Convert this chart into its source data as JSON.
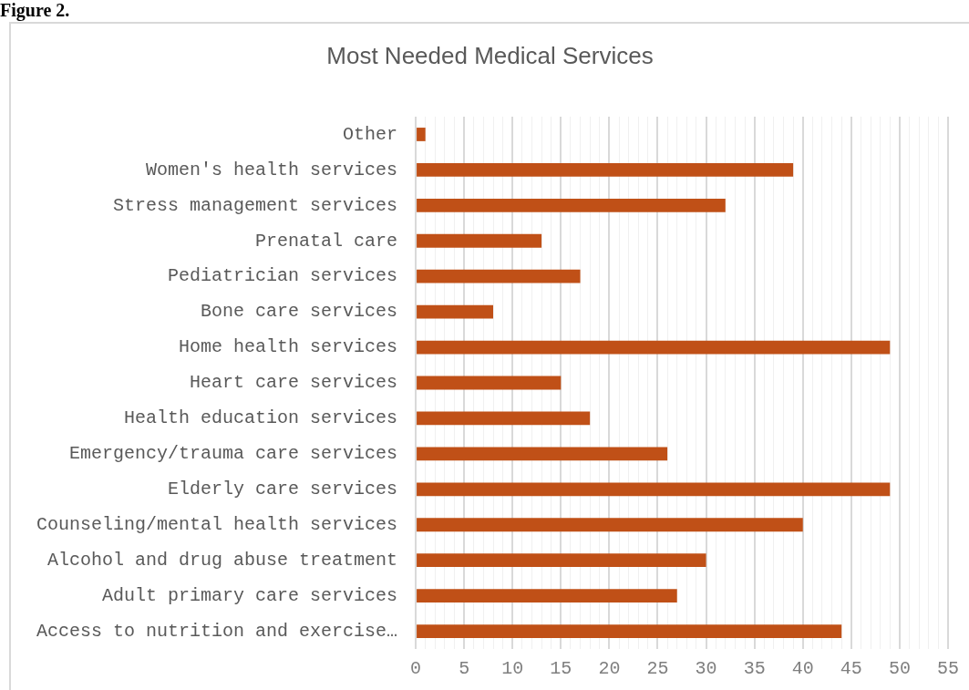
{
  "chart_data": {
    "type": "bar",
    "orientation": "horizontal",
    "title": "Most Needed Medical Services",
    "annotations": [
      "Figure 2."
    ],
    "categories": [
      "Other",
      "Women's health services",
      "Stress management services",
      "Prenatal care",
      "Pediatrician services",
      "Bone care services",
      "Home health services",
      "Heart care services",
      "Health education services",
      "Emergency/trauma care services",
      "Elderly care services",
      "Counseling/mental health services",
      "Alcohol and drug abuse treatment",
      "Adult primary care services",
      "Access to nutrition and exercise…"
    ],
    "values": [
      1,
      39,
      32,
      13,
      17,
      8,
      49,
      15,
      18,
      26,
      49,
      40,
      30,
      27,
      44
    ],
    "color": "#c05017",
    "xlim": [
      0,
      55
    ],
    "xticks": [
      0,
      {
        "value": 1,
        "label": null
      },
      {
        "value": 2,
        "label": null
      },
      {
        "value": 3,
        "label": null
      },
      {
        "value": 4,
        "label": null
      },
      5,
      {
        "value": 6,
        "label": null
      },
      {
        "value": 7,
        "label": null
      },
      {
        "value": 8,
        "label": null
      },
      {
        "value": 9,
        "label": null
      },
      10,
      {
        "value": 11,
        "label": null
      },
      {
        "value": 12,
        "label": null
      },
      {
        "value": 13,
        "label": null
      },
      {
        "value": 14,
        "label": null
      },
      15,
      {
        "value": 16,
        "label": null
      },
      {
        "value": 17,
        "label": null
      },
      {
        "value": 18,
        "label": null
      },
      {
        "value": 19,
        "label": null
      },
      20,
      {
        "value": 21,
        "label": null
      },
      {
        "value": 22,
        "label": null
      },
      {
        "value": 23,
        "label": null
      },
      {
        "value": 24,
        "label": null
      },
      25,
      {
        "value": 26,
        "label": null
      },
      {
        "value": 27,
        "label": null
      },
      {
        "value": 28,
        "label": null
      },
      {
        "value": 29,
        "label": null
      },
      30,
      {
        "value": 31,
        "label": null
      },
      {
        "value": 32,
        "label": null
      },
      {
        "value": 33,
        "label": null
      },
      {
        "value": 34,
        "label": null
      },
      35,
      {
        "value": 36,
        "label": null
      },
      {
        "value": 37,
        "label": null
      },
      {
        "value": 38,
        "label": null
      },
      {
        "value": 39,
        "label": null
      },
      40,
      {
        "value": 41,
        "label": null
      },
      {
        "value": 42,
        "label": null
      },
      {
        "value": 43,
        "label": null
      },
      {
        "value": 44,
        "label": null
      },
      45,
      {
        "value": 46,
        "label": null
      },
      {
        "value": 47,
        "label": null
      },
      {
        "value": 48,
        "label": null
      },
      {
        "value": 49,
        "label": null
      },
      50,
      {
        "value": 51,
        "label": null
      },
      {
        "value": 52,
        "label": null
      },
      {
        "value": 53,
        "label": null
      },
      {
        "value": 54,
        "label": null
      },
      55
    ],
    "grid": "x",
    "legend": false
  }
}
